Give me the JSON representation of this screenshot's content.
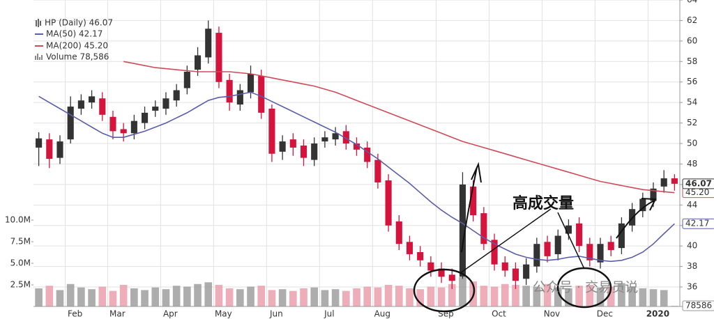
{
  "chart_data": {
    "type": "candlestick",
    "categories": [
      null,
      null,
      null,
      "Feb",
      null,
      null,
      null,
      "Mar",
      null,
      null,
      null,
      null,
      "Apr",
      null,
      null,
      null,
      null,
      "May",
      null,
      null,
      null,
      null,
      "Jun",
      null,
      null,
      null,
      null,
      "Jul",
      null,
      null,
      null,
      null,
      "Aug",
      null,
      null,
      null,
      null,
      null,
      "Sep",
      null,
      null,
      null,
      null,
      "Oct",
      null,
      null,
      null,
      null,
      "Nov",
      null,
      null,
      null,
      null,
      "Dec",
      null,
      null,
      null,
      null,
      "2020",
      null,
      null
    ],
    "price": {
      "name": "HP (Daily) 46.07",
      "up_color": "#333333",
      "down_color": "#d4143c",
      "open": [
        49.6,
        50.4,
        48.6,
        50.4,
        53.4,
        54.0,
        54.4,
        52.6,
        51.4,
        51.0,
        52.0,
        53.2,
        53.4,
        54.2,
        55.4,
        57.2,
        58.4,
        60.8,
        56.2,
        53.8,
        55.0,
        56.6,
        53.4,
        49.2,
        50.4,
        49.8,
        48.4,
        50.2,
        50.4,
        51.2,
        50.0,
        49.6,
        48.4,
        46.4,
        42.4,
        40.4,
        39.4,
        38.4,
        37.8,
        37.2,
        37.0,
        45.8,
        43.2,
        40.6,
        38.4,
        37.8,
        36.8,
        38.0,
        40.4,
        39.2,
        41.2,
        42.2,
        40.2,
        38.4,
        40.4,
        39.8,
        42.0,
        43.4,
        44.4,
        45.8,
        46.6
      ],
      "high": [
        51.1,
        51.0,
        50.8,
        54.6,
        54.8,
        55.2,
        55.0,
        53.2,
        52.0,
        52.8,
        53.6,
        54.2,
        55.0,
        55.8,
        57.6,
        59.4,
        62.0,
        61.4,
        56.8,
        55.8,
        57.6,
        57.2,
        53.8,
        50.8,
        51.0,
        50.4,
        50.6,
        51.2,
        51.6,
        51.8,
        50.6,
        50.2,
        49.0,
        47.0,
        43.0,
        41.0,
        40.0,
        39.0,
        38.4,
        37.8,
        47.2,
        46.4,
        43.8,
        41.2,
        39.0,
        38.4,
        38.8,
        40.8,
        41.0,
        41.6,
        42.6,
        42.8,
        40.8,
        40.8,
        41.0,
        42.8,
        44.2,
        45.2,
        46.2,
        47.4,
        47.0
      ],
      "low": [
        47.8,
        47.6,
        48.0,
        50.0,
        52.8,
        53.4,
        52.2,
        50.4,
        50.2,
        50.4,
        51.4,
        52.6,
        52.8,
        53.6,
        54.8,
        56.6,
        57.8,
        55.4,
        53.2,
        53.2,
        54.4,
        52.4,
        48.2,
        48.4,
        48.8,
        47.8,
        47.8,
        49.6,
        49.8,
        49.4,
        48.8,
        47.6,
        45.6,
        41.4,
        39.6,
        38.6,
        38.0,
        37.0,
        36.4,
        35.8,
        36.8,
        42.4,
        39.6,
        37.6,
        37.0,
        35.8,
        36.2,
        37.4,
        38.4,
        38.6,
        40.6,
        39.4,
        38.0,
        37.8,
        39.0,
        39.2,
        41.4,
        42.8,
        43.8,
        45.2,
        45.4
      ],
      "close": [
        50.5,
        48.5,
        50.2,
        53.6,
        54.2,
        54.6,
        52.8,
        51.2,
        51.0,
        52.2,
        53.0,
        53.6,
        54.4,
        55.2,
        57.0,
        58.6,
        61.2,
        56.0,
        54.0,
        55.2,
        56.8,
        53.0,
        49.0,
        50.2,
        49.6,
        48.6,
        50.0,
        50.6,
        51.0,
        50.0,
        49.4,
        48.2,
        46.2,
        42.0,
        40.2,
        39.2,
        38.6,
        37.6,
        37.0,
        36.6,
        46.0,
        43.0,
        40.2,
        38.2,
        37.6,
        36.6,
        38.2,
        40.2,
        39.0,
        41.0,
        42.0,
        40.0,
        38.6,
        40.2,
        39.6,
        42.2,
        43.6,
        44.6,
        45.6,
        46.6,
        46.07
      ]
    },
    "series": [
      {
        "name": "MA(50) 42.17",
        "color": "#5a5ea8",
        "values": [
          54.6,
          54.0,
          53.4,
          52.8,
          52.2,
          51.6,
          51.0,
          50.6,
          50.6,
          50.9,
          51.2,
          51.6,
          52.0,
          52.5,
          53.0,
          53.6,
          54.2,
          54.5,
          54.6,
          54.8,
          55.0,
          54.6,
          54.1,
          53.6,
          53.1,
          52.6,
          52.1,
          51.6,
          51.1,
          50.5,
          49.9,
          49.2,
          48.5,
          47.7,
          46.9,
          46.1,
          45.2,
          44.3,
          43.5,
          42.8,
          42.2,
          41.5,
          40.8,
          40.2,
          39.7,
          39.2,
          38.9,
          38.7,
          38.6,
          38.7,
          38.9,
          39.0,
          38.8,
          38.6,
          38.5,
          38.6,
          38.9,
          39.4,
          40.2,
          41.2,
          42.17
        ]
      },
      {
        "name": "MA(200) 45.20",
        "color": "#d04a5a",
        "last_label": "45.20",
        "values": [
          null,
          null,
          null,
          null,
          null,
          null,
          null,
          null,
          58.0,
          57.8,
          57.6,
          57.4,
          57.3,
          57.2,
          57.1,
          57.0,
          57.0,
          57.0,
          57.0,
          56.9,
          56.8,
          56.6,
          56.4,
          56.2,
          56.0,
          55.8,
          55.6,
          55.3,
          55.0,
          54.6,
          54.2,
          53.8,
          53.4,
          53.0,
          52.6,
          52.2,
          51.8,
          51.4,
          51.0,
          50.6,
          50.2,
          49.9,
          49.6,
          49.3,
          49.0,
          48.7,
          48.4,
          48.1,
          47.8,
          47.5,
          47.2,
          46.9,
          46.6,
          46.3,
          46.1,
          45.9,
          45.7,
          45.5,
          45.4,
          45.3,
          45.2
        ]
      }
    ],
    "volume": {
      "name": "Volume 78,586",
      "values": [
        2100000,
        2400000,
        1900000,
        2600000,
        2200000,
        2000000,
        2300000,
        1800000,
        2500000,
        2100000,
        1900000,
        2200000,
        2000000,
        2400000,
        2300000,
        2600000,
        2800000,
        2500000,
        2100000,
        2000000,
        2300000,
        2400000,
        1900000,
        2000000,
        1800000,
        2100000,
        2200000,
        1900000,
        2000000,
        1800000,
        2100000,
        2300000,
        2200000,
        2500000,
        2400000,
        2100000,
        2000000,
        2300000,
        2200000,
        2600000,
        3400000,
        2900000,
        2400000,
        2300000,
        2600000,
        2500000,
        2400000,
        2300000,
        2600000,
        2200000,
        2100000,
        2400000,
        2500000,
        2200000,
        2300000,
        2700000,
        2300000,
        2100000,
        2000000,
        1900000,
        78586
      ]
    },
    "ylim": [
      34.1,
      64
    ],
    "yticks": [
      36,
      38,
      40,
      42,
      44,
      46,
      48,
      50,
      52,
      54,
      56,
      58,
      60,
      62,
      64
    ],
    "y2lim": [
      0,
      35500000
    ],
    "y2ticks": [
      {
        "value": 2500000,
        "label": "2.5M"
      },
      {
        "value": 5000000,
        "label": "5.0M"
      },
      {
        "value": 7500000,
        "label": "7.5M"
      },
      {
        "value": 10000000,
        "label": "10.0M"
      }
    ],
    "grid": true,
    "annotation": "高成交量",
    "watermark": "公众号 · 交易员说"
  }
}
